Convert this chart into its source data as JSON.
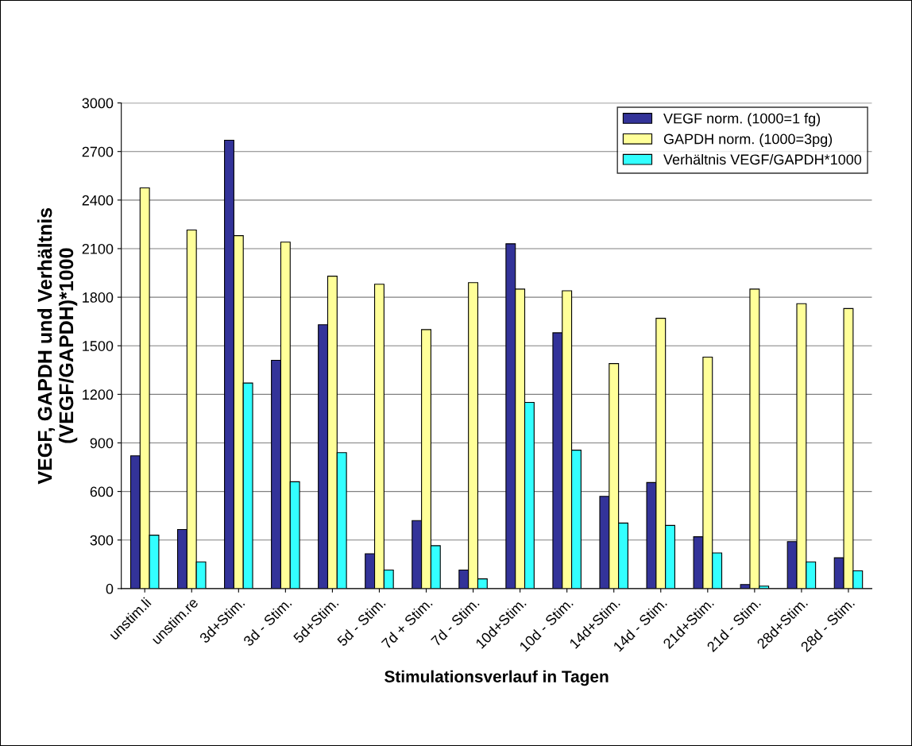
{
  "chart_data": {
    "type": "bar",
    "xlabel": "Stimulationsverlauf in Tagen",
    "ylabel": "VEGF, GAPDH und Verhältnis\n(VEGF/GAPDH)*1000",
    "categories": [
      "unstim.li",
      "unstim.re",
      "3d+Stim.",
      "3d - Stim.",
      "5d+Stim.",
      "5d - Stim.",
      "7d + Stim.",
      "7d - Stim.",
      "10d+Stim.",
      "10d - Stim.",
      "14d+Stim.",
      "14d - Stim.",
      "21d+Stim.",
      "21d - Stim.",
      "28d+Stim.",
      "28d - Stim."
    ],
    "series": [
      {
        "name": "VEGF norm. (1000=1 fg)",
        "color": "#333399",
        "values": [
          820,
          365,
          2770,
          1410,
          1630,
          215,
          420,
          115,
          2130,
          1580,
          570,
          655,
          320,
          25,
          290,
          190
        ]
      },
      {
        "name": "GAPDH norm. (1000=3pg)",
        "color": "#ffff99",
        "values": [
          2475,
          2215,
          2180,
          2140,
          1930,
          1880,
          1600,
          1890,
          1850,
          1840,
          1390,
          1670,
          1430,
          1850,
          1760,
          1730
        ]
      },
      {
        "name": "Verhältnis VEGF/GAPDH*1000",
        "color": "#33ffff",
        "values": [
          330,
          165,
          1270,
          660,
          840,
          115,
          265,
          60,
          1150,
          855,
          405,
          390,
          220,
          15,
          165,
          110
        ]
      }
    ],
    "ylim": [
      0,
      3000
    ],
    "yticks": [
      0,
      300,
      600,
      900,
      1200,
      1500,
      1800,
      2100,
      2400,
      2700,
      3000
    ],
    "grid": "y",
    "legend": "top right"
  }
}
